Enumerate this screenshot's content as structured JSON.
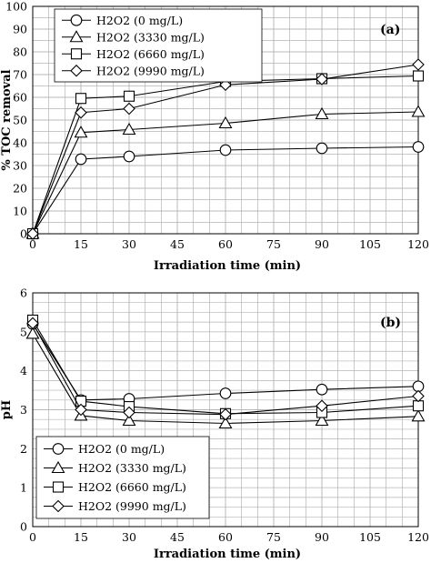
{
  "chart_data": [
    {
      "type": "line",
      "panel_label": "(a)",
      "xlabel": "Irradiation time (min)",
      "ylabel": "% TOC removal",
      "xlim": [
        0,
        120
      ],
      "ylim": [
        0,
        100
      ],
      "xticks": [
        0,
        15,
        30,
        45,
        60,
        75,
        90,
        105,
        120
      ],
      "yticks": [
        0,
        10,
        20,
        30,
        40,
        50,
        60,
        70,
        80,
        90,
        100
      ],
      "grid": true,
      "legend_position": "top-left",
      "x": [
        0,
        15,
        30,
        60,
        90,
        120
      ],
      "series": [
        {
          "name": "H2O2 (0 mg/L)",
          "marker": "circle",
          "values": [
            0,
            32.8,
            34,
            36.8,
            37.6,
            38.2
          ]
        },
        {
          "name": "H2O2 (3330 mg/L)",
          "marker": "triangle",
          "values": [
            0,
            44.5,
            45.8,
            48.6,
            52.6,
            53.6
          ]
        },
        {
          "name": "H2O2 (6660 mg/L)",
          "marker": "square",
          "values": [
            0,
            59.5,
            60.5,
            67,
            68.2,
            69.4
          ]
        },
        {
          "name": "H2O2 (9990 mg/L)",
          "marker": "diamond",
          "values": [
            0,
            53.3,
            55,
            65.5,
            68,
            74.4
          ]
        }
      ]
    },
    {
      "type": "line",
      "panel_label": "(b)",
      "xlabel": "Irradiation time (min)",
      "ylabel": "pH",
      "xlim": [
        0,
        120
      ],
      "ylim": [
        0,
        6
      ],
      "xticks": [
        0,
        15,
        30,
        45,
        60,
        75,
        90,
        105,
        120
      ],
      "yticks": [
        0,
        1,
        2,
        3,
        4,
        5,
        6
      ],
      "grid": true,
      "legend_position": "bottom-left",
      "x": [
        0,
        15,
        30,
        60,
        90,
        120
      ],
      "series": [
        {
          "name": "H2O2 (0 mg/L)",
          "marker": "circle",
          "values": [
            5.2,
            3.25,
            3.28,
            3.42,
            3.52,
            3.6
          ]
        },
        {
          "name": "H2O2 (3330 mg/L)",
          "marker": "triangle",
          "values": [
            4.95,
            2.85,
            2.72,
            2.65,
            2.72,
            2.83
          ]
        },
        {
          "name": "H2O2 (6660 mg/L)",
          "marker": "square",
          "values": [
            5.3,
            3.22,
            3.08,
            2.9,
            2.93,
            3.1
          ]
        },
        {
          "name": "H2O2 (9990 mg/L)",
          "marker": "diamond",
          "values": [
            5.22,
            3.0,
            2.93,
            2.88,
            3.1,
            3.35
          ]
        }
      ]
    }
  ]
}
